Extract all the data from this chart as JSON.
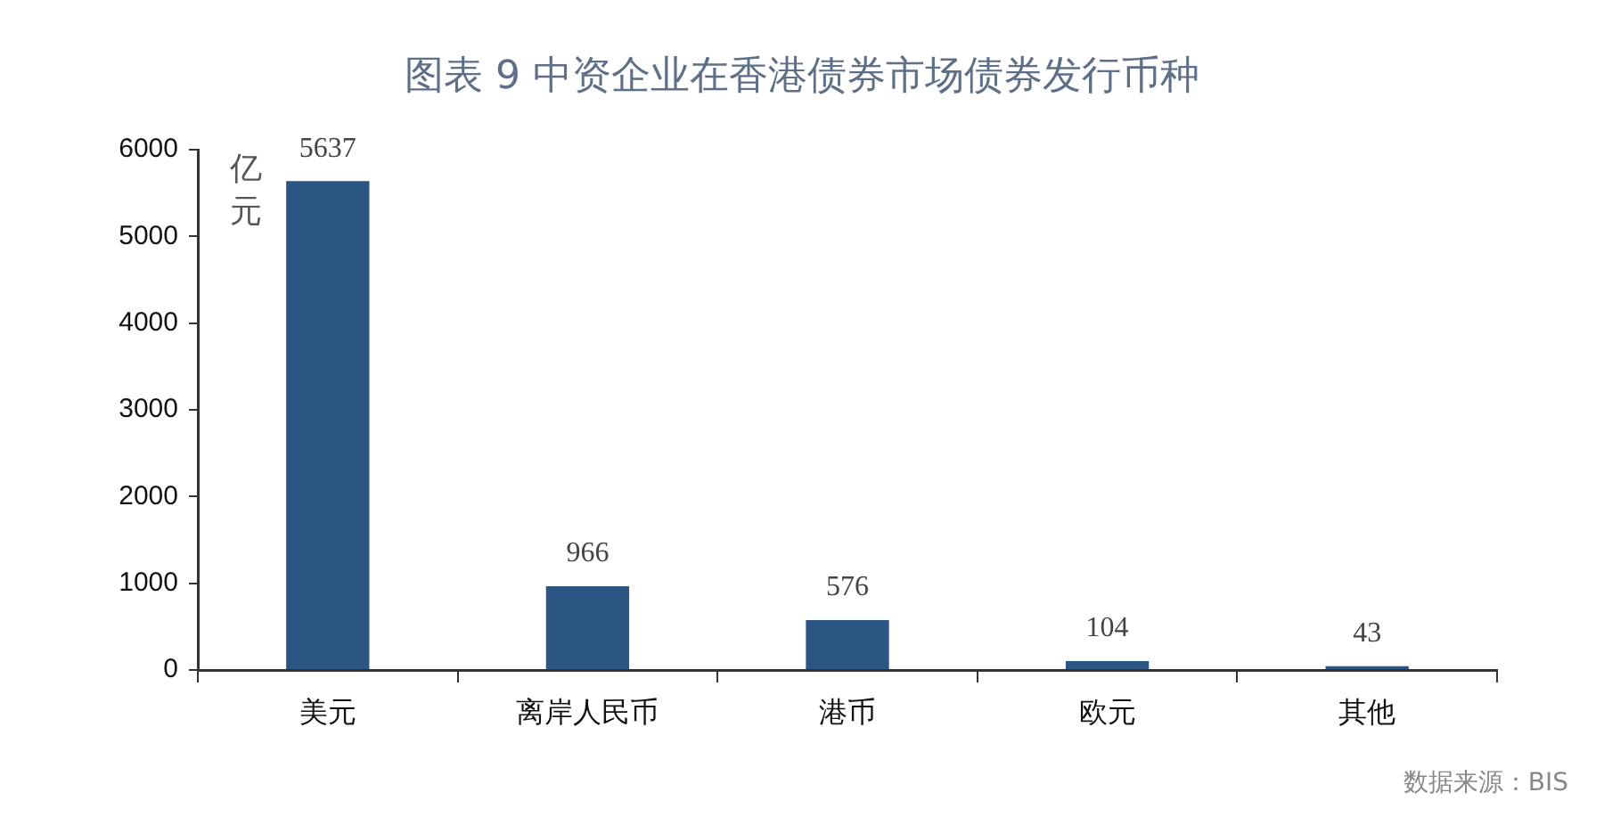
{
  "chart_data": {
    "type": "bar",
    "title": "图表 9 中资企业在香港债券市场债券发行币种",
    "ylabel": "亿元",
    "categories": [
      "美元",
      "离岸人民币",
      "港币",
      "欧元",
      "其他"
    ],
    "values": [
      5637,
      966,
      576,
      104,
      43
    ],
    "color": "#2b5582",
    "ylim": [
      0,
      6000
    ],
    "yticks": [
      0,
      1000,
      2000,
      3000,
      4000,
      5000,
      6000
    ],
    "data_labels": true,
    "annotations": [
      "数据来源：BIS"
    ]
  }
}
